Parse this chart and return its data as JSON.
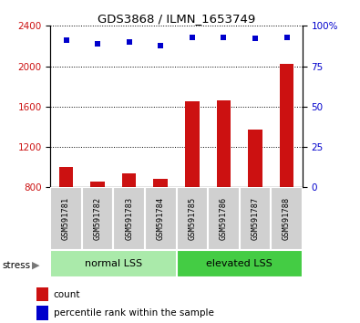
{
  "title": "GDS3868 / ILMN_1653749",
  "samples": [
    "GSM591781",
    "GSM591782",
    "GSM591783",
    "GSM591784",
    "GSM591785",
    "GSM591786",
    "GSM591787",
    "GSM591788"
  ],
  "counts": [
    1000,
    860,
    940,
    880,
    1650,
    1660,
    1370,
    2020
  ],
  "percentile_ranks": [
    91,
    89,
    90,
    88,
    93,
    93,
    92,
    93
  ],
  "ylim_left": [
    800,
    2400
  ],
  "ylim_right": [
    0,
    100
  ],
  "yticks_left": [
    800,
    1200,
    1600,
    2000,
    2400
  ],
  "yticks_right": [
    0,
    25,
    50,
    75,
    100
  ],
  "bar_color": "#cc1111",
  "scatter_color": "#0000cc",
  "groups": [
    {
      "label": "normal LSS",
      "start": 0,
      "end": 4,
      "color": "#aaeaaa"
    },
    {
      "label": "elevated LSS",
      "start": 4,
      "end": 8,
      "color": "#44cc44"
    }
  ],
  "stress_label": "stress",
  "left_yaxis_color": "#cc1111",
  "right_yaxis_color": "#0000cc",
  "legend_count_label": "count",
  "legend_pct_label": "percentile rank within the sample",
  "background_color": "#ffffff",
  "sample_box_color": "#cccccc",
  "grid_color": "#000000"
}
